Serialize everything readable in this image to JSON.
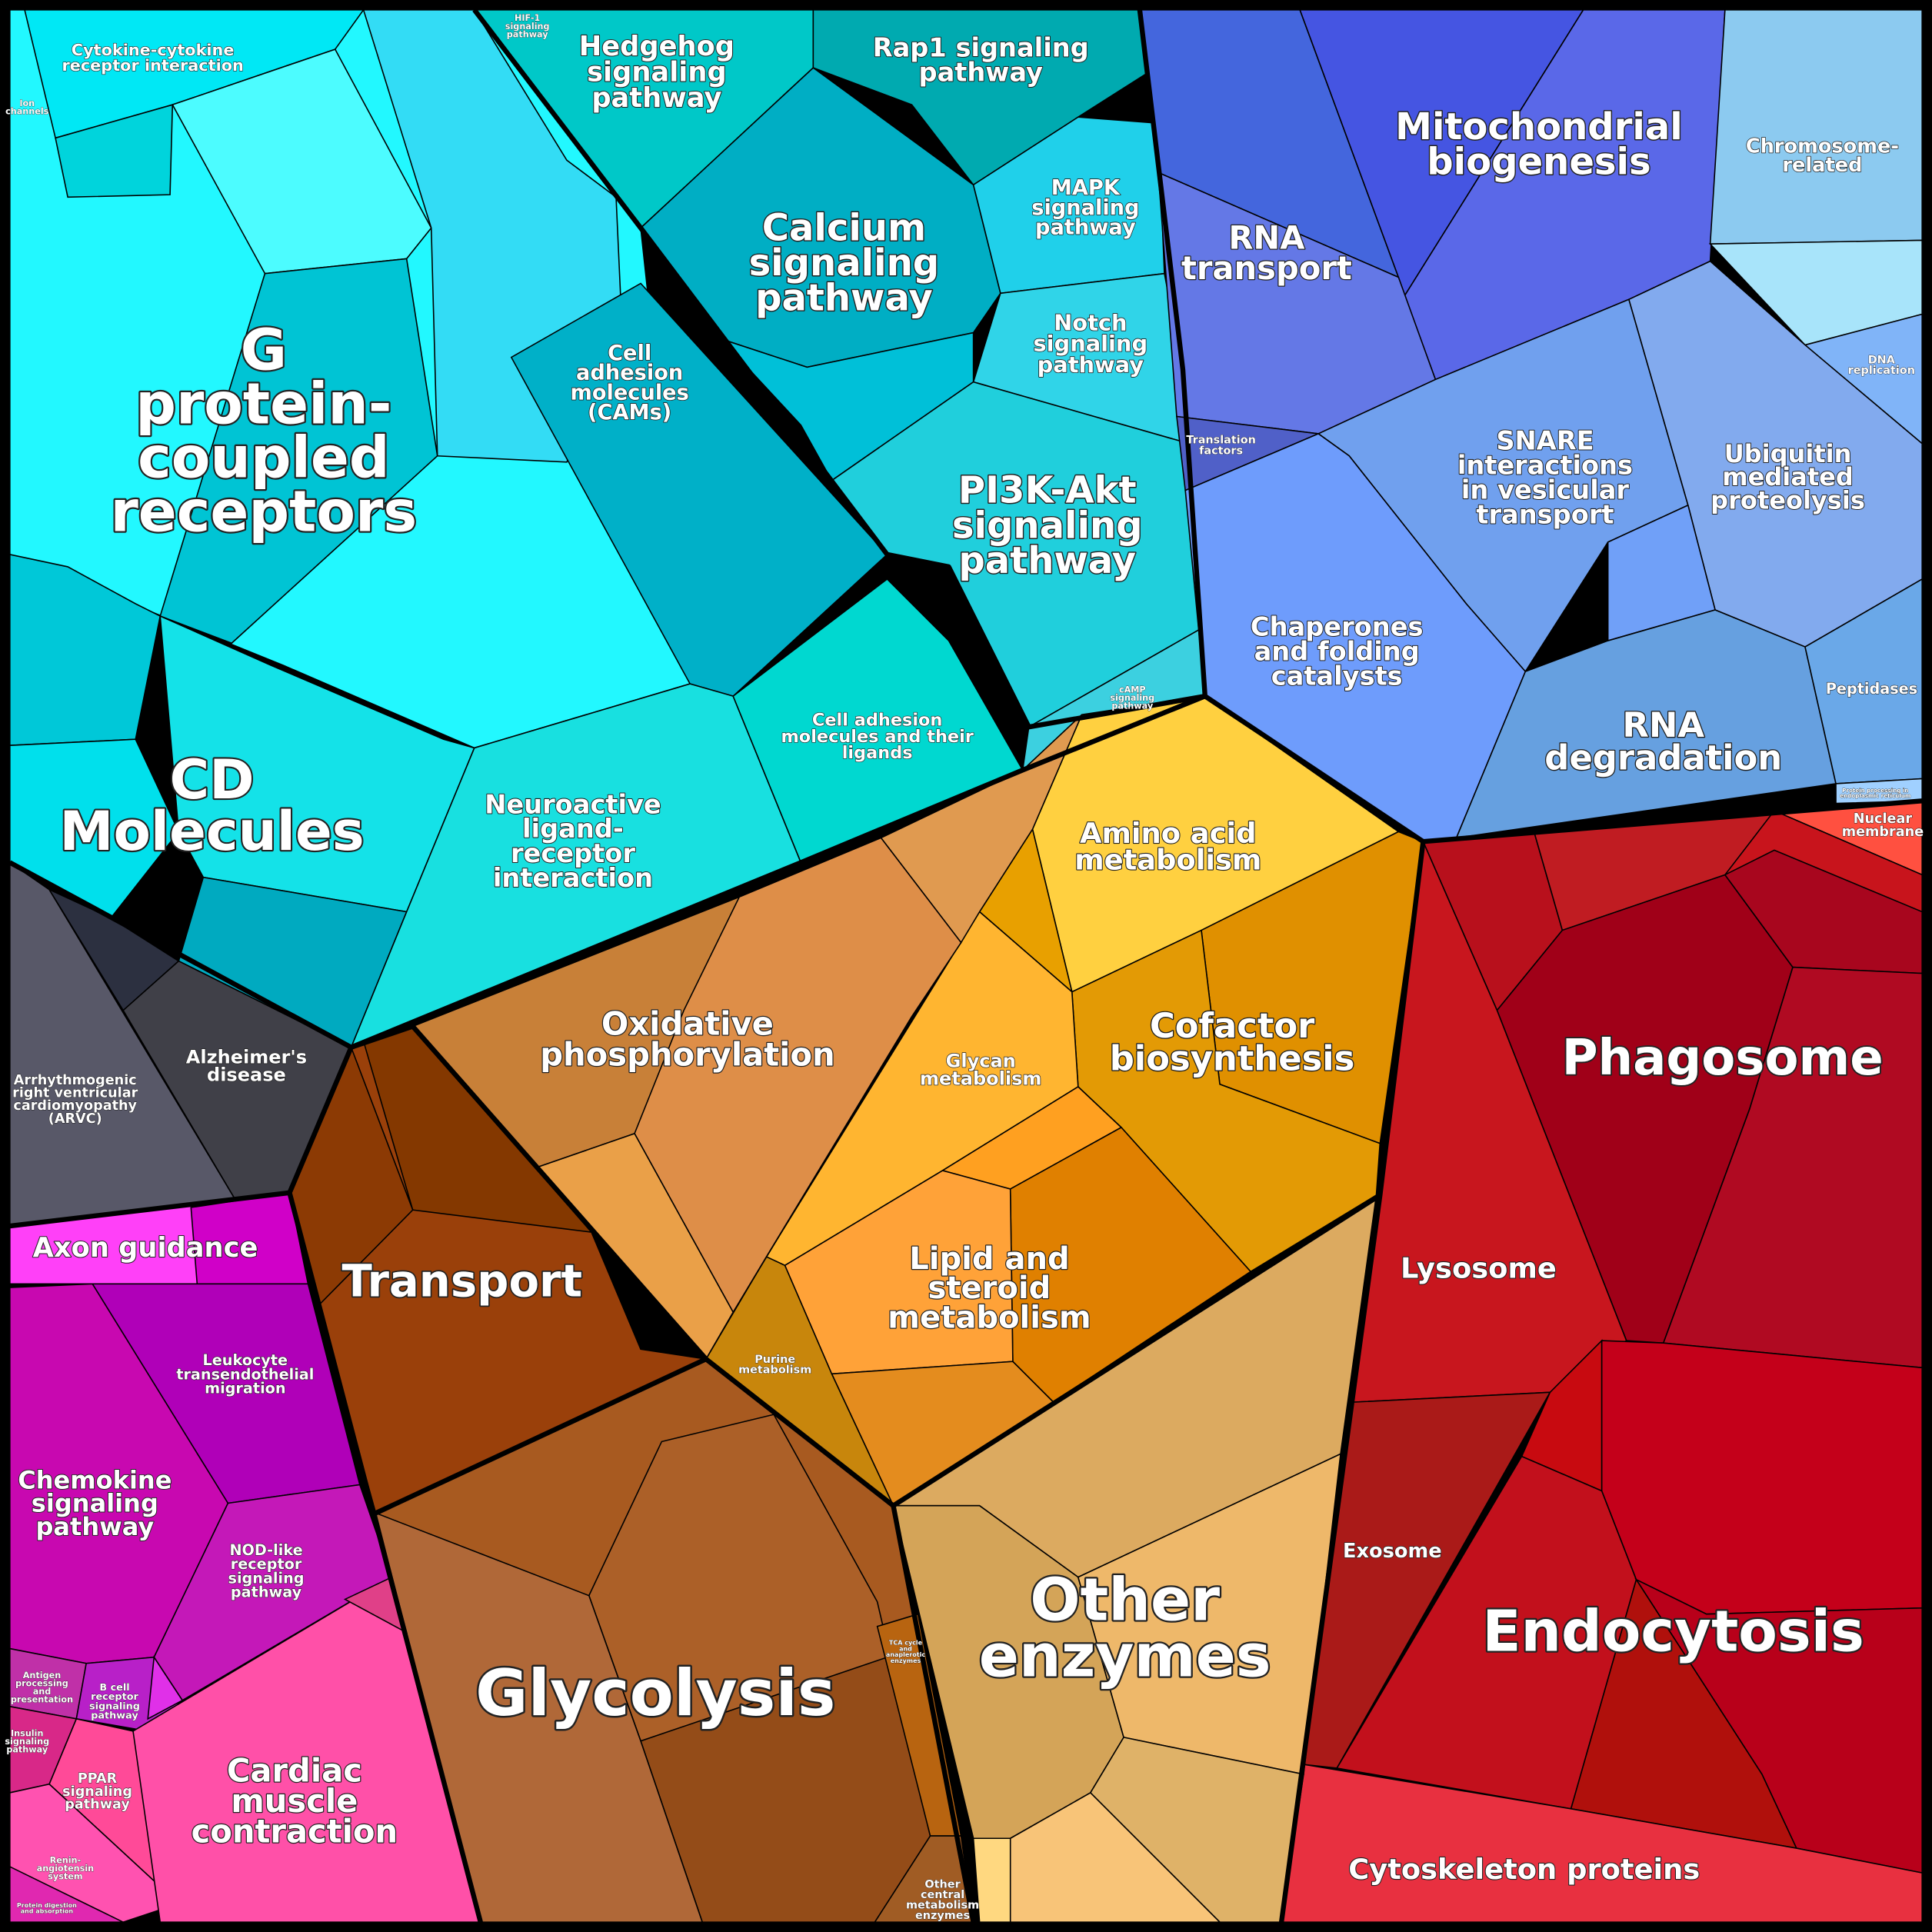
{
  "chart_data": {
    "type": "treemap",
    "variant": "voronoi",
    "title": "",
    "group_colors": {
      "signaling": "#1ae8f0",
      "information": "#5870e6",
      "cellular": "#c01520",
      "metabolism": "#ffb030",
      "energy": "#9a400a",
      "other_enzymes": "#d8a860",
      "disease": "#505060",
      "immune_organismal": "#c010b0"
    },
    "cells": [
      {
        "id": "cytokine",
        "lines": [
          "Cytokine-cytokine",
          "receptor interaction"
        ]
      },
      {
        "id": "ion",
        "lines": [
          "Ion",
          "channels"
        ]
      },
      {
        "id": "hif1",
        "lines": [
          "HIF-1",
          "signaling",
          "pathway"
        ]
      },
      {
        "id": "hedgehog",
        "lines": [
          "Hedgehog",
          "signaling",
          "pathway"
        ]
      },
      {
        "id": "rap1",
        "lines": [
          "Rap1 signaling",
          "pathway"
        ]
      },
      {
        "id": "mito",
        "lines": [
          "Mitochondrial",
          "biogenesis"
        ]
      },
      {
        "id": "chromo",
        "lines": [
          "Chromosome-",
          "related"
        ]
      },
      {
        "id": "rnatransport",
        "lines": [
          "RNA",
          "transport"
        ]
      },
      {
        "id": "dnarep",
        "lines": [
          "DNA",
          "replication"
        ]
      },
      {
        "id": "gpcr",
        "lines": [
          "G",
          "protein-",
          "coupled",
          "receptors"
        ]
      },
      {
        "id": "calcium",
        "lines": [
          "Calcium",
          "signaling",
          "pathway"
        ]
      },
      {
        "id": "mapk",
        "lines": [
          "MAPK",
          "signaling",
          "pathway"
        ]
      },
      {
        "id": "notch",
        "lines": [
          "Notch",
          "signaling",
          "pathway"
        ]
      },
      {
        "id": "cams",
        "lines": [
          "Cell",
          "adhesion",
          "molecules",
          "(CAMs)"
        ]
      },
      {
        "id": "translation",
        "lines": [
          "Translation",
          "factors"
        ]
      },
      {
        "id": "snare",
        "lines": [
          "SNARE",
          "interactions",
          "in vesicular",
          "transport"
        ]
      },
      {
        "id": "ubiquitin",
        "lines": [
          "Ubiquitin",
          "mediated",
          "proteolysis"
        ]
      },
      {
        "id": "pi3k",
        "lines": [
          "PI3K-Akt",
          "signaling",
          "pathway"
        ]
      },
      {
        "id": "chaperones",
        "lines": [
          "Chaperones",
          "and folding",
          "catalysts"
        ]
      },
      {
        "id": "camp",
        "lines": [
          "cAMP",
          "signaling",
          "pathway"
        ]
      },
      {
        "id": "peptidases",
        "lines": [
          "Peptidases"
        ]
      },
      {
        "id": "rnadeg",
        "lines": [
          "RNA",
          "degradation"
        ]
      },
      {
        "id": "cellad",
        "lines": [
          "Cell adhesion",
          "molecules and their",
          "ligands"
        ]
      },
      {
        "id": "cd",
        "lines": [
          "CD",
          "Molecules"
        ]
      },
      {
        "id": "neuro",
        "lines": [
          "Neuroactive",
          "ligand-",
          "receptor",
          "interaction"
        ]
      },
      {
        "id": "protproc",
        "lines": [
          "Protein processing in",
          "endoplasmic reticulum"
        ]
      },
      {
        "id": "nuclear",
        "lines": [
          "Nuclear",
          "membrane"
        ]
      },
      {
        "id": "amino",
        "lines": [
          "Amino acid",
          "metabolism"
        ]
      },
      {
        "id": "phagosome",
        "lines": [
          "Phagosome"
        ]
      },
      {
        "id": "oxphos",
        "lines": [
          "Oxidative",
          "phosphorylation"
        ]
      },
      {
        "id": "cofactor",
        "lines": [
          "Cofactor",
          "biosynthesis"
        ]
      },
      {
        "id": "alz",
        "lines": [
          "Alzheimer's",
          "disease"
        ]
      },
      {
        "id": "glycan",
        "lines": [
          "Glycan",
          "metabolism"
        ]
      },
      {
        "id": "arvc",
        "lines": [
          "Arrhythmogenic",
          "right ventricular",
          "cardiomyopathy",
          "(ARVC)"
        ]
      },
      {
        "id": "axon",
        "lines": [
          "Axon guidance"
        ]
      },
      {
        "id": "lipid",
        "lines": [
          "Lipid and",
          "steroid",
          "metabolism"
        ]
      },
      {
        "id": "lysosome",
        "lines": [
          "Lysosome"
        ]
      },
      {
        "id": "transport",
        "lines": [
          "Transport"
        ]
      },
      {
        "id": "purine",
        "lines": [
          "Purine",
          "metabolism"
        ]
      },
      {
        "id": "leuko",
        "lines": [
          "Leukocyte",
          "transendothelial",
          "migration"
        ]
      },
      {
        "id": "chemokine",
        "lines": [
          "Chemokine",
          "signaling",
          "pathway"
        ]
      },
      {
        "id": "nod",
        "lines": [
          "NOD-like",
          "receptor",
          "signaling",
          "pathway"
        ]
      },
      {
        "id": "exosome",
        "lines": [
          "Exosome"
        ]
      },
      {
        "id": "otherenz",
        "lines": [
          "Other",
          "enzymes"
        ]
      },
      {
        "id": "endocytosis",
        "lines": [
          "Endocytosis"
        ]
      },
      {
        "id": "glycolysis",
        "lines": [
          "Glycolysis"
        ]
      },
      {
        "id": "tca",
        "lines": [
          "TCA cycle",
          "and",
          "anaplerotic",
          "enzymes"
        ]
      },
      {
        "id": "antigen",
        "lines": [
          "Antigen",
          "processing",
          "and",
          "presentation"
        ]
      },
      {
        "id": "bcell",
        "lines": [
          "B cell",
          "receptor",
          "signaling",
          "pathway"
        ]
      },
      {
        "id": "insulin",
        "lines": [
          "Insulin",
          "signaling",
          "pathway"
        ]
      },
      {
        "id": "ppar",
        "lines": [
          "PPAR",
          "signaling",
          "pathway"
        ]
      },
      {
        "id": "cardiac",
        "lines": [
          "Cardiac",
          "muscle",
          "contraction"
        ]
      },
      {
        "id": "renin",
        "lines": [
          "Renin-",
          "angiotensin",
          "system"
        ]
      },
      {
        "id": "protdig",
        "lines": [
          "Protein digestion",
          "and absorption"
        ]
      },
      {
        "id": "othercentral",
        "lines": [
          "Other",
          "central",
          "metabolism",
          "enzymes"
        ]
      },
      {
        "id": "cyto",
        "lines": [
          "Cytoskeleton proteins"
        ]
      }
    ]
  }
}
